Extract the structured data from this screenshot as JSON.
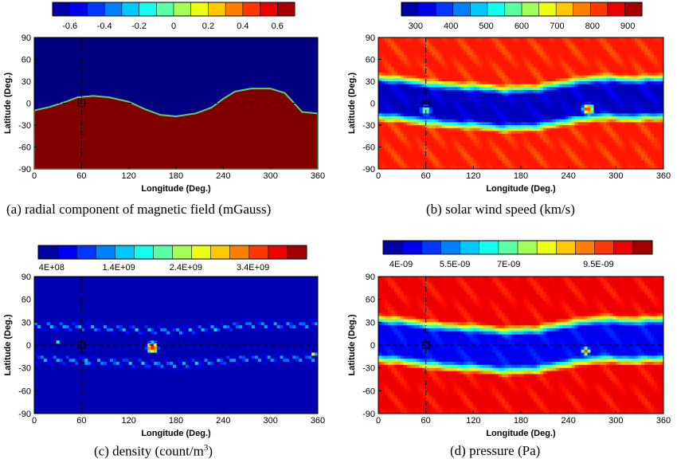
{
  "chart_data": [
    {
      "type": "heatmap",
      "caption": "(a)  radial component of magnetic field (mGauss)",
      "xlabel": "Longitude (Deg.)",
      "ylabel": "Latitude (Deg.)",
      "xlim": [
        0,
        360
      ],
      "ylim": [
        -90,
        90
      ],
      "xticks": [
        "0",
        "60",
        "120",
        "180",
        "240",
        "300",
        "360"
      ],
      "yticks": [
        "90",
        "60",
        "30",
        "0",
        "-30",
        "-60",
        "-90"
      ],
      "colorbar": {
        "range": [
          -0.7,
          0.7
        ],
        "tick_values": [
          -0.6,
          -0.4,
          -0.2,
          0,
          0.2,
          0.4,
          0.6
        ],
        "tick_labels": [
          "-0.6",
          "-0.4",
          "-0.2",
          "0",
          "0.2",
          "0.4",
          "0.6"
        ]
      },
      "field": "sign",
      "boundary_latitude": [
        [
          0,
          -10
        ],
        [
          20,
          -5
        ],
        [
          40,
          2
        ],
        [
          55,
          8
        ],
        [
          75,
          10
        ],
        [
          95,
          8
        ],
        [
          120,
          2
        ],
        [
          140,
          -8
        ],
        [
          160,
          -16
        ],
        [
          180,
          -18
        ],
        [
          205,
          -14
        ],
        [
          225,
          -6
        ],
        [
          240,
          6
        ],
        [
          255,
          16
        ],
        [
          275,
          20
        ],
        [
          300,
          20
        ],
        [
          318,
          14
        ],
        [
          330,
          0
        ],
        [
          340,
          -12
        ],
        [
          360,
          -14
        ]
      ],
      "low_value": -0.7,
      "high_value": 0.7
    },
    {
      "type": "heatmap",
      "caption": "(b)  solar wind speed (km/s)",
      "xlabel": "Longitude (Deg.)",
      "ylabel": "Latitude (Deg.)",
      "xlim": [
        0,
        360
      ],
      "ylim": [
        -90,
        90
      ],
      "xticks": [
        "0",
        "60",
        "120",
        "180",
        "240",
        "300",
        "360"
      ],
      "yticks": [
        "90",
        "60",
        "30",
        "0",
        "-30",
        "-60",
        "-90"
      ],
      "colorbar": {
        "range": [
          260,
          940
        ],
        "tick_values": [
          300,
          400,
          500,
          600,
          700,
          800,
          900
        ],
        "tick_labels": [
          "300",
          "400",
          "500",
          "600",
          "700",
          "800",
          "900"
        ]
      },
      "field": "slow_band",
      "band_center": [
        [
          0,
          8
        ],
        [
          40,
          4
        ],
        [
          80,
          -2
        ],
        [
          120,
          -4
        ],
        [
          160,
          -8
        ],
        [
          200,
          -6
        ],
        [
          240,
          2
        ],
        [
          280,
          8
        ],
        [
          320,
          6
        ],
        [
          360,
          8
        ]
      ],
      "band_halfwidth": 34,
      "band_value": 300,
      "background_value": 840,
      "blobs": [
        {
          "lon": 265,
          "lat": -8,
          "r": 9,
          "value": 800
        },
        {
          "lon": 60,
          "lat": -10,
          "r": 8,
          "value": 560
        }
      ]
    },
    {
      "type": "heatmap",
      "caption": "(c)  density (count/m",
      "caption_sup": "3",
      "caption_end": ")",
      "xlabel": "Longitude (Deg.)",
      "ylabel": "Latitude (Deg.)",
      "xlim": [
        0,
        360
      ],
      "ylim": [
        -90,
        90
      ],
      "xticks": [
        "0",
        "60",
        "120",
        "180",
        "240",
        "300",
        "360"
      ],
      "yticks": [
        "90",
        "60",
        "30",
        "0",
        "-30",
        "-60",
        "-90"
      ],
      "colorbar": {
        "range": [
          200000000,
          4200000000
        ],
        "tick_values": [
          400000000,
          1400000000,
          2400000000,
          3400000000
        ],
        "tick_labels": [
          "4E+08",
          "1.4E+09",
          "2.4E+09",
          "3.4E+09"
        ]
      },
      "field": "dense_ring",
      "background_value": 400000000,
      "blobs": [
        {
          "lon": 150,
          "lat": -3,
          "r": 9,
          "value": 3600000000
        },
        {
          "lon": 30,
          "lat": 4,
          "r": 4,
          "value": 1800000000
        },
        {
          "lon": 355,
          "lat": -12,
          "r": 4,
          "value": 2600000000
        },
        {
          "lon": 230,
          "lat": 20,
          "r": 3,
          "value": 1600000000
        },
        {
          "lon": 65,
          "lat": -25,
          "r": 3,
          "value": 1500000000
        }
      ]
    },
    {
      "type": "heatmap",
      "caption": "(d)  pressure (Pa)",
      "xlabel": "Longitude (Deg.)",
      "ylabel": "Latitude (Deg.)",
      "xlim": [
        0,
        360
      ],
      "ylim": [
        -90,
        90
      ],
      "xticks": [
        "0",
        "60",
        "120",
        "180",
        "240",
        "300",
        "360"
      ],
      "yticks": [
        "90",
        "60",
        "30",
        "0",
        "-30",
        "-60",
        "-90"
      ],
      "colorbar": {
        "range": [
          3.5e-09,
          1.1e-08
        ],
        "tick_values": [
          4e-09,
          5.5e-09,
          7e-09,
          9.5e-09
        ],
        "tick_labels": [
          "4E-09",
          "5.5E-09",
          "7E-09",
          "9.5E-09"
        ]
      },
      "field": "slow_band",
      "band_center": [
        [
          0,
          8
        ],
        [
          40,
          4
        ],
        [
          80,
          -2
        ],
        [
          120,
          -4
        ],
        [
          160,
          -8
        ],
        [
          200,
          -6
        ],
        [
          240,
          2
        ],
        [
          280,
          8
        ],
        [
          320,
          6
        ],
        [
          360,
          8
        ]
      ],
      "band_halfwidth": 34,
      "band_value": 4.3e-09,
      "background_value": 1.02e-08,
      "blobs": [
        {
          "lon": 262,
          "lat": -8,
          "r": 6,
          "value": 9.5e-09
        }
      ]
    }
  ]
}
